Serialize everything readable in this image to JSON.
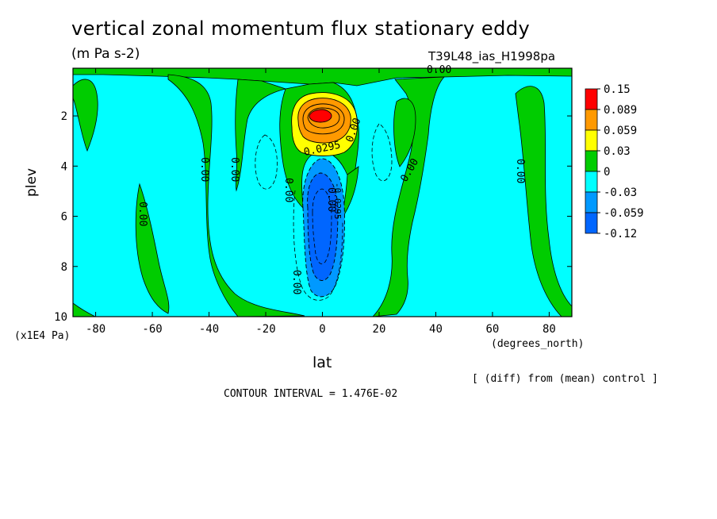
{
  "title": "vertical zonal momentum flux stationary eddy",
  "units": "(m Pa s-2)",
  "run_label": "T39L48_ias_H1998pa",
  "footer": {
    "diff_note": "[ (diff) from (mean) control ]",
    "contour_interval": "CONTOUR INTERVAL = 1.476E-02"
  },
  "chart_data": {
    "type": "heatmap",
    "title": "vertical zonal momentum flux stationary eddy",
    "subtitle": "(m Pa s-2)",
    "xlabel": "lat",
    "x_units": "(degrees_north)",
    "ylabel": "plev",
    "y_units": "(x1E4 Pa)",
    "xlim": [
      -88,
      88
    ],
    "ylim": [
      10,
      0.1
    ],
    "x_ticks": [
      -80,
      -60,
      -40,
      -20,
      0,
      20,
      40,
      60,
      80
    ],
    "y_ticks": [
      2,
      4,
      6,
      8,
      10
    ],
    "colorbar": {
      "levels": [
        "0.15",
        "0.089",
        "0.059",
        "0.03",
        "0",
        "-0.03",
        "-0.059",
        "-0.12"
      ],
      "colors": [
        "#ff0000",
        "#ff9900",
        "#ffff00",
        "#00cc00",
        "#00ffff",
        "#0099ff",
        "#0066ff"
      ]
    },
    "contour_labels": [
      "0.00",
      "0.0295",
      "0.00",
      "0.00",
      "0.00",
      "0.00",
      "0.00",
      "0.00",
      "0.00",
      "0.00",
      "0.00",
      "-0.0295"
    ],
    "features": [
      {
        "name": "positive maximum",
        "lat": 0,
        "plev": 2.0,
        "value_range": "> 0.15"
      },
      {
        "name": "negative minimum",
        "lat": 0,
        "plev": 6.0,
        "value_range": "< -0.059"
      }
    ],
    "contour_interval": 0.01476,
    "grid": false
  }
}
